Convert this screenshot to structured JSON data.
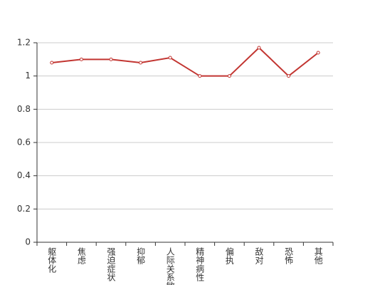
{
  "chart_data": {
    "type": "line",
    "categories": [
      "躯体化",
      "焦虑",
      "强迫症状",
      "抑郁",
      "人际关系敏感",
      "精神病性",
      "偏执",
      "敌对",
      "恐怖",
      "其他"
    ],
    "values": [
      1.08,
      1.1,
      1.1,
      1.08,
      1.11,
      1.0,
      1.0,
      1.17,
      1.0,
      1.14
    ],
    "color": "#c23531",
    "ylim": [
      0,
      1.2
    ],
    "yticks": [
      0,
      0.2,
      0.4,
      0.6,
      0.8,
      1,
      1.2
    ],
    "grid": true
  }
}
